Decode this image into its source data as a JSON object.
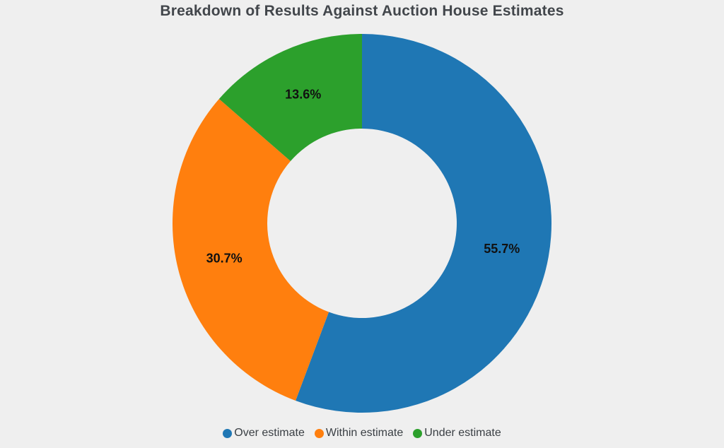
{
  "title": "Breakdown of Results Against Auction House Estimates",
  "colors": {
    "background": "#efefef",
    "title_text": "#42464b",
    "slice_label_text": "#111111",
    "legend_text": "#3a3f44"
  },
  "chart_data": {
    "type": "pie",
    "subtype": "donut",
    "title": "Breakdown of Results Against Auction House Estimates",
    "categories": [
      "Over estimate",
      "Within estimate",
      "Under estimate"
    ],
    "values": [
      55.7,
      30.7,
      13.6
    ],
    "value_labels": [
      "55.7%",
      "30.7%",
      "13.6%"
    ],
    "slice_colors": [
      "#1f77b4",
      "#ff7f0e",
      "#2ca02c"
    ],
    "start_angle_deg": 0,
    "direction": "clockwise",
    "hole_ratio": 0.5,
    "label_radius_ratio": 0.75,
    "legend_position": "bottom",
    "grid": false
  },
  "legend": {
    "items": [
      {
        "label": "Over estimate",
        "color": "#1f77b4"
      },
      {
        "label": "Within estimate",
        "color": "#ff7f0e"
      },
      {
        "label": "Under estimate",
        "color": "#2ca02c"
      }
    ]
  }
}
